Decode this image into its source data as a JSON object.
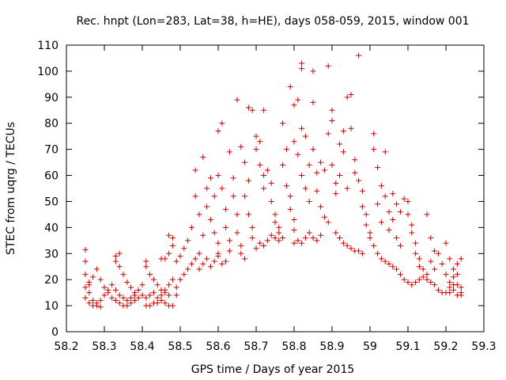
{
  "chart_data": {
    "type": "scatter",
    "title": "Rec. hnpt (Lon=283, Lat=38, h=HE), days 058-059, 2015, window 001",
    "xlabel": "GPS time / Days of year 2015",
    "ylabel": "STEC from uqrg / TECUs",
    "xlim": [
      58.2,
      59.3
    ],
    "ylim": [
      0,
      110
    ],
    "xticks": [
      "58.2",
      "58.3",
      "58.4",
      "58.5",
      "58.6",
      "58.7",
      "58.8",
      "58.9",
      "59",
      "59.1",
      "59.2",
      "59.3"
    ],
    "yticks": [
      "0",
      "10",
      "20",
      "30",
      "40",
      "50",
      "60",
      "70",
      "80",
      "90",
      "100",
      "110"
    ],
    "grid": false,
    "legend": "none",
    "marker": "plus",
    "color": "#cc0000",
    "series": [
      {
        "points": [
          [
            58.25,
            31.5
          ],
          [
            58.25,
            27
          ],
          [
            58.25,
            22
          ],
          [
            58.26,
            18
          ],
          [
            58.26,
            15
          ],
          [
            58.27,
            12
          ],
          [
            58.28,
            10
          ],
          [
            58.29,
            9.5
          ],
          [
            58.25,
            17
          ],
          [
            58.26,
            19
          ],
          [
            58.27,
            21
          ],
          [
            58.28,
            24
          ],
          [
            58.29,
            20
          ],
          [
            58.3,
            17
          ],
          [
            58.31,
            15
          ],
          [
            58.32,
            13
          ],
          [
            58.25,
            13
          ],
          [
            58.26,
            11
          ],
          [
            58.27,
            10
          ],
          [
            58.28,
            11
          ],
          [
            58.29,
            12
          ],
          [
            58.3,
            14
          ],
          [
            58.31,
            16
          ],
          [
            58.32,
            18
          ],
          [
            58.33,
            29
          ],
          [
            58.33,
            27
          ],
          [
            58.34,
            30
          ],
          [
            58.34,
            25
          ],
          [
            58.35,
            22
          ],
          [
            58.36,
            19
          ],
          [
            58.37,
            17
          ],
          [
            58.38,
            15
          ],
          [
            58.33,
            12
          ],
          [
            58.34,
            11
          ],
          [
            58.35,
            10
          ],
          [
            58.36,
            10
          ],
          [
            58.37,
            11
          ],
          [
            58.38,
            12
          ],
          [
            58.39,
            13
          ],
          [
            58.4,
            14
          ],
          [
            58.33,
            16
          ],
          [
            58.34,
            14
          ],
          [
            58.35,
            13
          ],
          [
            58.36,
            12
          ],
          [
            58.37,
            13
          ],
          [
            58.38,
            14
          ],
          [
            58.39,
            16
          ],
          [
            58.4,
            18
          ],
          [
            58.41,
            27
          ],
          [
            58.41,
            25
          ],
          [
            58.42,
            22
          ],
          [
            58.43,
            20
          ],
          [
            58.44,
            18
          ],
          [
            58.45,
            16
          ],
          [
            58.46,
            15
          ],
          [
            58.47,
            14
          ],
          [
            58.41,
            10
          ],
          [
            58.42,
            10
          ],
          [
            58.43,
            11
          ],
          [
            58.44,
            11
          ],
          [
            58.45,
            12
          ],
          [
            58.46,
            11
          ],
          [
            58.47,
            10
          ],
          [
            58.48,
            10
          ],
          [
            58.41,
            13
          ],
          [
            58.42,
            14
          ],
          [
            58.43,
            15
          ],
          [
            58.44,
            13
          ],
          [
            58.45,
            14
          ],
          [
            58.46,
            16
          ],
          [
            58.47,
            18
          ],
          [
            58.48,
            20
          ],
          [
            58.45,
            28
          ],
          [
            58.46,
            28
          ],
          [
            58.47,
            30
          ],
          [
            58.47,
            37
          ],
          [
            58.48,
            36
          ],
          [
            58.48,
            33
          ],
          [
            58.49,
            27
          ],
          [
            58.5,
            29
          ],
          [
            58.49,
            14
          ],
          [
            58.49,
            17
          ],
          [
            58.5,
            20
          ],
          [
            58.51,
            22
          ],
          [
            58.52,
            24
          ],
          [
            58.53,
            26
          ],
          [
            58.54,
            28
          ],
          [
            58.55,
            30
          ],
          [
            58.51,
            32
          ],
          [
            58.52,
            35
          ],
          [
            58.53,
            40
          ],
          [
            58.54,
            52
          ],
          [
            58.54,
            62
          ],
          [
            58.55,
            45
          ],
          [
            58.56,
            67
          ],
          [
            58.56,
            37
          ],
          [
            58.57,
            55
          ],
          [
            58.57,
            48
          ],
          [
            58.58,
            43
          ],
          [
            58.58,
            59
          ],
          [
            58.59,
            52
          ],
          [
            58.59,
            38
          ],
          [
            58.6,
            34
          ],
          [
            58.6,
            30
          ],
          [
            58.55,
            24
          ],
          [
            58.56,
            26
          ],
          [
            58.57,
            28
          ],
          [
            58.58,
            25
          ],
          [
            58.59,
            27
          ],
          [
            58.6,
            29
          ],
          [
            58.61,
            26
          ],
          [
            58.62,
            27
          ],
          [
            58.6,
            60
          ],
          [
            58.6,
            77
          ],
          [
            58.61,
            80
          ],
          [
            58.61,
            55
          ],
          [
            58.62,
            47
          ],
          [
            58.62,
            40
          ],
          [
            58.63,
            35
          ],
          [
            58.63,
            31
          ],
          [
            58.63,
            69
          ],
          [
            58.64,
            59
          ],
          [
            58.64,
            52
          ],
          [
            58.65,
            45
          ],
          [
            58.65,
            38
          ],
          [
            58.66,
            33
          ],
          [
            58.66,
            30
          ],
          [
            58.67,
            28
          ],
          [
            58.65,
            89
          ],
          [
            58.66,
            71
          ],
          [
            58.67,
            65
          ],
          [
            58.67,
            52
          ],
          [
            58.68,
            58
          ],
          [
            58.68,
            45
          ],
          [
            58.69,
            40
          ],
          [
            58.69,
            36
          ],
          [
            58.68,
            86
          ],
          [
            58.69,
            85
          ],
          [
            58.7,
            75
          ],
          [
            58.7,
            70
          ],
          [
            58.71,
            73
          ],
          [
            58.71,
            64
          ],
          [
            58.72,
            60
          ],
          [
            58.72,
            55
          ],
          [
            58.7,
            32
          ],
          [
            58.71,
            34
          ],
          [
            58.72,
            33
          ],
          [
            58.73,
            35
          ],
          [
            58.74,
            37
          ],
          [
            58.75,
            36
          ],
          [
            58.76,
            35
          ],
          [
            58.77,
            36
          ],
          [
            58.72,
            85
          ],
          [
            58.73,
            62
          ],
          [
            58.74,
            57
          ],
          [
            58.74,
            50
          ],
          [
            58.75,
            45
          ],
          [
            58.75,
            42
          ],
          [
            58.76,
            40
          ],
          [
            58.76,
            38
          ],
          [
            58.77,
            80
          ],
          [
            58.77,
            64
          ],
          [
            58.78,
            70
          ],
          [
            58.78,
            56
          ],
          [
            58.79,
            52
          ],
          [
            58.79,
            47
          ],
          [
            58.8,
            43
          ],
          [
            58.8,
            39
          ],
          [
            58.79,
            94
          ],
          [
            58.8,
            87
          ],
          [
            58.8,
            73
          ],
          [
            58.81,
            89
          ],
          [
            58.81,
            68
          ],
          [
            58.82,
            78
          ],
          [
            58.82,
            103
          ],
          [
            58.82,
            101
          ],
          [
            58.82,
            60
          ],
          [
            58.83,
            75
          ],
          [
            58.83,
            55
          ],
          [
            58.84,
            64
          ],
          [
            58.84,
            50
          ],
          [
            58.85,
            70
          ],
          [
            58.85,
            100
          ],
          [
            58.85,
            88
          ],
          [
            58.8,
            34
          ],
          [
            58.81,
            35
          ],
          [
            58.82,
            34
          ],
          [
            58.83,
            36
          ],
          [
            58.84,
            38
          ],
          [
            58.85,
            36
          ],
          [
            58.86,
            35
          ],
          [
            58.87,
            37
          ],
          [
            58.86,
            61
          ],
          [
            58.86,
            54
          ],
          [
            58.87,
            65
          ],
          [
            58.87,
            48
          ],
          [
            58.88,
            62
          ],
          [
            58.88,
            44
          ],
          [
            58.89,
            102
          ],
          [
            58.89,
            42
          ],
          [
            58.89,
            76
          ],
          [
            58.9,
            85
          ],
          [
            58.9,
            81
          ],
          [
            58.9,
            64
          ],
          [
            58.91,
            57
          ],
          [
            58.91,
            53
          ],
          [
            58.92,
            72
          ],
          [
            58.92,
            60
          ],
          [
            58.93,
            77
          ],
          [
            58.93,
            69
          ],
          [
            58.94,
            90
          ],
          [
            58.94,
            55
          ],
          [
            58.95,
            91
          ],
          [
            58.95,
            78
          ],
          [
            58.96,
            66
          ],
          [
            58.96,
            61
          ],
          [
            58.97,
            106
          ],
          [
            58.97,
            58
          ],
          [
            58.98,
            54
          ],
          [
            58.98,
            48
          ],
          [
            58.99,
            45
          ],
          [
            58.99,
            41
          ],
          [
            59.0,
            38
          ],
          [
            59.0,
            36
          ],
          [
            58.91,
            38
          ],
          [
            58.92,
            36
          ],
          [
            58.93,
            34
          ],
          [
            58.94,
            33
          ],
          [
            58.95,
            32
          ],
          [
            58.96,
            31
          ],
          [
            58.97,
            31
          ],
          [
            58.98,
            30
          ],
          [
            59.01,
            76
          ],
          [
            59.01,
            70
          ],
          [
            59.02,
            63
          ],
          [
            59.02,
            49
          ],
          [
            59.03,
            56
          ],
          [
            59.03,
            42
          ],
          [
            59.04,
            69
          ],
          [
            59.04,
            52
          ],
          [
            59.01,
            33
          ],
          [
            59.02,
            30
          ],
          [
            59.03,
            28
          ],
          [
            59.04,
            27
          ],
          [
            59.05,
            26
          ],
          [
            59.06,
            25
          ],
          [
            59.07,
            24
          ],
          [
            59.08,
            22
          ],
          [
            59.05,
            46
          ],
          [
            59.05,
            39
          ],
          [
            59.06,
            53
          ],
          [
            59.06,
            43
          ],
          [
            59.07,
            49
          ],
          [
            59.07,
            36
          ],
          [
            59.08,
            46
          ],
          [
            59.08,
            33
          ],
          [
            59.09,
            51
          ],
          [
            59.1,
            50
          ],
          [
            59.1,
            45
          ],
          [
            59.11,
            41
          ],
          [
            59.11,
            38
          ],
          [
            59.12,
            34
          ],
          [
            59.12,
            30
          ],
          [
            59.13,
            28
          ],
          [
            59.09,
            20
          ],
          [
            59.1,
            19
          ],
          [
            59.11,
            18
          ],
          [
            59.12,
            19
          ],
          [
            59.13,
            20
          ],
          [
            59.14,
            21
          ],
          [
            59.15,
            20
          ],
          [
            59.16,
            19
          ],
          [
            59.13,
            25
          ],
          [
            59.14,
            24
          ],
          [
            59.15,
            45
          ],
          [
            59.15,
            22
          ],
          [
            59.16,
            36
          ],
          [
            59.16,
            27
          ],
          [
            59.17,
            31
          ],
          [
            59.17,
            24
          ],
          [
            59.17,
            18
          ],
          [
            59.18,
            30
          ],
          [
            59.18,
            16
          ],
          [
            59.19,
            26
          ],
          [
            59.19,
            15
          ],
          [
            59.2,
            34
          ],
          [
            59.2,
            22
          ],
          [
            59.21,
            28
          ],
          [
            59.2,
            15
          ],
          [
            59.21,
            15
          ],
          [
            59.22,
            16
          ],
          [
            59.22,
            24
          ],
          [
            59.23,
            26
          ],
          [
            59.23,
            18
          ],
          [
            59.24,
            17
          ],
          [
            59.24,
            14
          ],
          [
            59.21,
            19
          ],
          [
            59.22,
            21
          ],
          [
            59.23,
            14
          ],
          [
            59.24,
            28
          ],
          [
            59.24,
            15
          ],
          [
            59.23,
            22
          ],
          [
            59.22,
            18
          ],
          [
            59.21,
            17
          ]
        ]
      }
    ]
  }
}
